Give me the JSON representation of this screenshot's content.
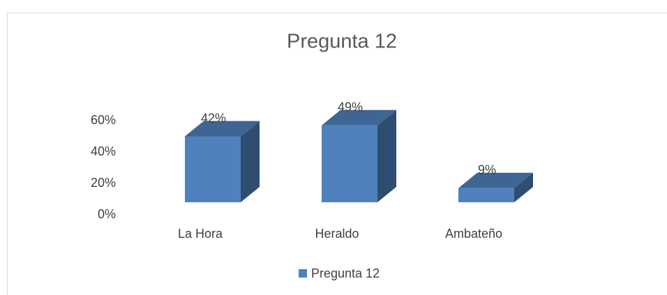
{
  "chart_data": {
    "type": "bar3d",
    "title": "Pregunta 12",
    "categories": [
      "La Hora",
      "Heraldo",
      "Ambateño"
    ],
    "series": [
      {
        "name": "Pregunta 12",
        "color": "#4f81bd",
        "values": [
          42,
          49,
          9
        ],
        "value_labels": [
          "42%",
          "49%",
          "9%"
        ]
      }
    ],
    "ylim": [
      0,
      60
    ],
    "yticks": [
      {
        "value": 0,
        "label": "0%"
      },
      {
        "value": 20,
        "label": "20%"
      },
      {
        "value": 40,
        "label": "40%"
      },
      {
        "value": 60,
        "label": "60%"
      }
    ],
    "grid": false,
    "legend": "bottom"
  }
}
